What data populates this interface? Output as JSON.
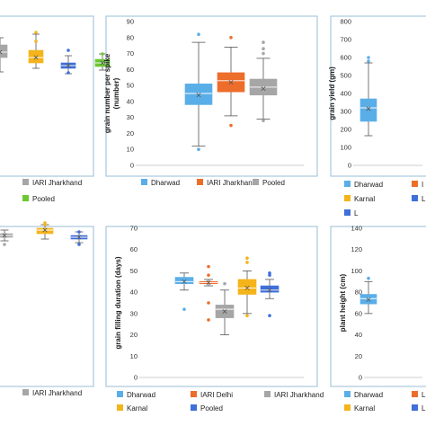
{
  "colors": {
    "dharwad": "#5aaee8",
    "iari_jharkhand": "#ed6d2b",
    "pooled": "#a6a6a6",
    "iari_delhi": "#ed6d2b",
    "karnal": "#f4b41a",
    "ludhiana": "#3f6fd8",
    "iari_jharkhand_gray": "#a6a6a6",
    "pooled_green": "#6cc832",
    "pooled_blue": "#3f6fd8"
  },
  "chart_data": [
    {
      "id": "top-left",
      "type": "box",
      "ylabel": "",
      "ylim": [
        0,
        80
      ],
      "yticks": [],
      "series": [
        {
          "name": "",
          "color_key": "pooled",
          "min": 52,
          "q1": 60,
          "median": 63,
          "q3": 67,
          "max": 71,
          "mean": 63,
          "outliers": []
        },
        {
          "name": "",
          "color_key": "karnal",
          "min": 54,
          "q1": 57,
          "median": 60,
          "q3": 64,
          "max": 73,
          "mean": 60,
          "outliers": [
            69,
            74
          ]
        },
        {
          "name": "",
          "color_key": "ludhiana",
          "min": 51,
          "q1": 54,
          "median": 55.5,
          "q3": 57,
          "max": 61,
          "mean": 55.5,
          "outliers": [
            51.5,
            64
          ]
        },
        {
          "name": "",
          "color_key": "pooled_green",
          "min": 53,
          "q1": 55,
          "median": 57,
          "q3": 59,
          "max": 62,
          "mean": 57,
          "outliers": [
            62
          ]
        }
      ],
      "legend": [
        "IARI Jharkhand",
        "Pooled"
      ],
      "legend_color_keys": [
        "pooled",
        "pooled_green"
      ]
    },
    {
      "id": "top-middle",
      "type": "box",
      "ylabel": "grain number per spike (number)",
      "ylim": [
        0,
        90
      ],
      "yticks": [
        0,
        10,
        20,
        30,
        40,
        50,
        60,
        70,
        80,
        90
      ],
      "series": [
        {
          "name": "Dharwad",
          "color_key": "dharwad",
          "min": 12,
          "q1": 38,
          "median": 45,
          "q3": 51,
          "max": 77,
          "mean": 44,
          "outliers": [
            10,
            82
          ]
        },
        {
          "name": "IARI Jharkhand",
          "color_key": "iari_jharkhand",
          "min": 31,
          "q1": 46,
          "median": 53,
          "q3": 58,
          "max": 74,
          "mean": 52,
          "outliers": [
            25,
            80
          ]
        },
        {
          "name": "Pooled",
          "color_key": "pooled",
          "min": 29,
          "q1": 44,
          "median": 49,
          "q3": 54,
          "max": 67,
          "mean": 48,
          "outliers": [
            28,
            70,
            73,
            77
          ]
        }
      ],
      "legend": [
        "Dharwad",
        "IARI Jharkhand",
        "Pooled"
      ],
      "legend_color_keys": [
        "dharwad",
        "iari_jharkhand",
        "pooled"
      ]
    },
    {
      "id": "top-right",
      "type": "box",
      "ylabel": "grain yield (gm)",
      "ylim": [
        0,
        800
      ],
      "yticks": [
        0,
        100,
        200,
        300,
        400,
        500,
        600,
        700,
        800
      ],
      "series": [
        {
          "name": "Dharwad",
          "color_key": "dharwad",
          "min": 165,
          "q1": 245,
          "median": 320,
          "q3": 370,
          "max": 570,
          "mean": 315,
          "outliers": [
            580,
            600
          ]
        }
      ],
      "legend": [
        "Dharwad",
        "Karnal",
        "L"
      ],
      "legend_color_keys": [
        "dharwad",
        "karnal",
        "ludhiana"
      ],
      "legend_right": [
        "I",
        "L"
      ],
      "legend_right_color_keys": [
        "iari_jharkhand",
        "ludhiana"
      ]
    },
    {
      "id": "bottom-left",
      "type": "box",
      "ylabel": "",
      "ylim": [
        0,
        100
      ],
      "yticks": [],
      "series": [
        {
          "name": "",
          "color_key": "pooled",
          "min": 82,
          "q1": 84,
          "median": 85,
          "q3": 86,
          "max": 88,
          "mean": 85,
          "outliers": [
            80
          ]
        },
        {
          "name": "",
          "color_key": "karnal",
          "min": 83,
          "q1": 86,
          "median": 88,
          "q3": 89,
          "max": 91,
          "mean": 88,
          "outliers": [
            91,
            92
          ]
        },
        {
          "name": "",
          "color_key": "ludhiana",
          "min": 81,
          "q1": 83,
          "median": 84,
          "q3": 85,
          "max": 87,
          "mean": 84,
          "outliers": [
            80,
            87
          ]
        }
      ],
      "legend": [
        "IARI Jharkhand"
      ],
      "legend_color_keys": [
        "pooled"
      ]
    },
    {
      "id": "bottom-middle",
      "type": "box",
      "ylabel": "grain filling duration (days)",
      "ylim": [
        0,
        70
      ],
      "yticks": [
        0,
        10,
        20,
        30,
        40,
        50,
        60,
        70
      ],
      "series": [
        {
          "name": "Dharwad",
          "color_key": "dharwad",
          "min": 41,
          "q1": 44,
          "median": 45,
          "q3": 47,
          "max": 49,
          "mean": 45,
          "outliers": [
            32
          ]
        },
        {
          "name": "IARI Delhi",
          "color_key": "iari_delhi",
          "min": 43,
          "q1": 44,
          "median": 44.5,
          "q3": 45,
          "max": 46,
          "mean": 44.5,
          "outliers": [
            27,
            35,
            52,
            48
          ]
        },
        {
          "name": "IARI Jharkhand",
          "color_key": "iari_jharkhand_gray",
          "min": 20,
          "q1": 28,
          "median": 32,
          "q3": 34,
          "max": 41,
          "mean": 31,
          "outliers": [
            44
          ]
        },
        {
          "name": "Karnal",
          "color_key": "karnal",
          "min": 30,
          "q1": 39,
          "median": 42,
          "q3": 46,
          "max": 50,
          "mean": 42,
          "outliers": [
            29,
            54,
            56
          ]
        },
        {
          "name": "Pooled",
          "color_key": "pooled_blue",
          "min": 37,
          "q1": 40,
          "median": 41,
          "q3": 43,
          "max": 46,
          "mean": 41,
          "outliers": [
            29,
            48,
            49
          ]
        }
      ],
      "legend": [
        "Dharwad",
        "IARI Delhi",
        "IARI Jharkhand",
        "Karnal",
        "Pooled"
      ],
      "legend_color_keys": [
        "dharwad",
        "iari_delhi",
        "iari_jharkhand_gray",
        "karnal",
        "pooled_blue"
      ]
    },
    {
      "id": "bottom-right",
      "type": "box",
      "ylabel": "plant height (cm)",
      "ylim": [
        0,
        140
      ],
      "yticks": [
        0,
        20,
        40,
        60,
        80,
        100,
        120,
        140
      ],
      "series": [
        {
          "name": "Dharwad",
          "color_key": "dharwad",
          "min": 60,
          "q1": 69,
          "median": 74,
          "q3": 78,
          "max": 90,
          "mean": 73,
          "outliers": [
            93
          ]
        }
      ],
      "legend": [
        "Dharwad",
        "Karnal"
      ],
      "legend_color_keys": [
        "dharwad",
        "karnal"
      ],
      "legend_right": [
        "L",
        "L"
      ],
      "legend_right_color_keys": [
        "iari_jharkhand",
        "ludhiana"
      ]
    }
  ]
}
